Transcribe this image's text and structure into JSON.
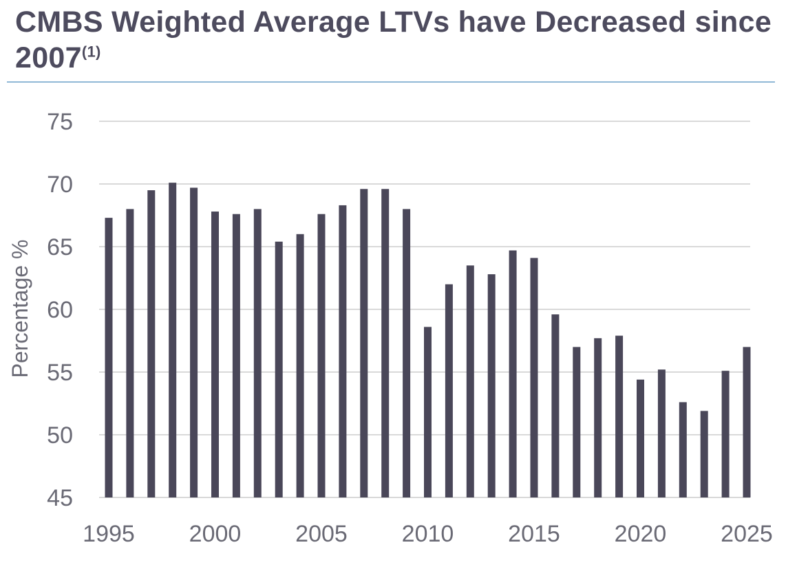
{
  "title": {
    "text": "CMBS Weighted Average LTVs have Decreased since 2007",
    "footnote": "(1)"
  },
  "colors": {
    "bar": "#4a4759",
    "title": "#4d4b5e",
    "rule": "#8fb8d6",
    "grid": "#d9d9d9"
  },
  "chart_data": {
    "type": "bar",
    "title": "CMBS Weighted Average LTVs have Decreased since 2007",
    "xlabel": "",
    "ylabel": "Percentage %",
    "ylim": [
      45,
      75
    ],
    "yticks": [
      45,
      50,
      55,
      60,
      65,
      70,
      75
    ],
    "xticks": [
      1995,
      2000,
      2005,
      2010,
      2015,
      2020,
      2025
    ],
    "grid": true,
    "categories": [
      1995,
      1996,
      1997,
      1998,
      1999,
      2000,
      2001,
      2002,
      2003,
      2004,
      2005,
      2006,
      2007,
      2008,
      2009,
      2010,
      2011,
      2012,
      2013,
      2014,
      2015,
      2016,
      2017,
      2018,
      2019,
      2020,
      2021,
      2022,
      2023,
      2024,
      2025
    ],
    "values": [
      67.3,
      68.0,
      69.5,
      70.1,
      69.7,
      67.8,
      67.6,
      68.0,
      65.4,
      66.0,
      67.6,
      68.3,
      69.6,
      69.6,
      68.0,
      58.6,
      62.0,
      63.5,
      62.8,
      64.7,
      64.1,
      59.6,
      57.0,
      57.7,
      57.9,
      54.4,
      55.2,
      52.6,
      51.9,
      55.1,
      57.0
    ]
  }
}
